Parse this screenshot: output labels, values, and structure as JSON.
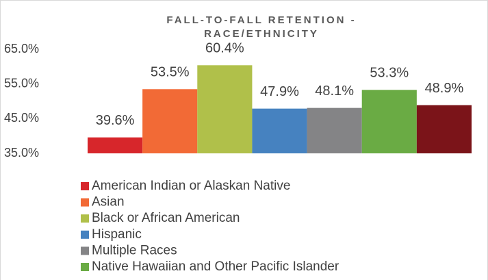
{
  "chart_data": {
    "type": "bar",
    "title": [
      "FALL-TO-FALL RETENTION -",
      "RACE/ETHNICITY"
    ],
    "series": [
      {
        "name": "American Indian or Alaskan Native",
        "color": "#d7262b",
        "values": [
          39.6
        ],
        "value_labels": [
          "39.6%"
        ]
      },
      {
        "name": "Asian",
        "color": "#f26a36",
        "values": [
          53.5
        ],
        "value_labels": [
          "53.5%"
        ]
      },
      {
        "name": "Black or African American",
        "color": "#b0c04a",
        "values": [
          60.4
        ],
        "value_labels": [
          "60.4%"
        ]
      },
      {
        "name": "Hispanic",
        "color": "#4682c0",
        "values": [
          47.9
        ],
        "value_labels": [
          "47.9%"
        ]
      },
      {
        "name": "Multiple Races",
        "color": "#848486",
        "values": [
          48.1
        ],
        "value_labels": [
          "48.1%"
        ]
      },
      {
        "name": "Native Hawaiian and Other Pacific Islander",
        "color": "#6aab44",
        "values": [
          53.3
        ],
        "value_labels": [
          "53.3%"
        ]
      },
      {
        "name": null,
        "color": "#7b1419",
        "values": [
          48.9
        ],
        "value_labels": [
          "48.9%"
        ]
      }
    ],
    "ylim": [
      35,
      65
    ],
    "yticks": [
      {
        "value": 35,
        "label": "35.0%"
      },
      {
        "value": 45,
        "label": "45.0%"
      },
      {
        "value": 55,
        "label": "55.0%"
      },
      {
        "value": 65,
        "label": "65.0%"
      }
    ],
    "grid": false
  }
}
